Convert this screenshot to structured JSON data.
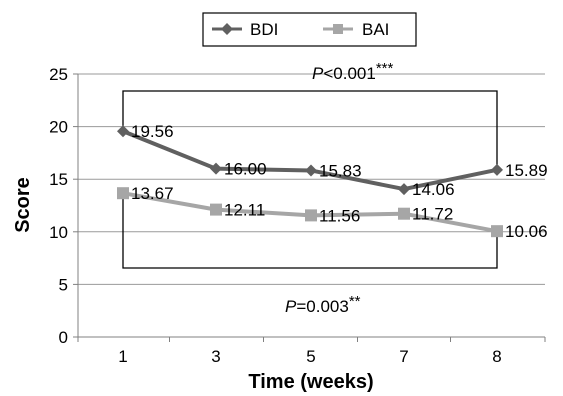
{
  "chart_data": {
    "type": "line",
    "categories": [
      "1",
      "3",
      "5",
      "7",
      "8"
    ],
    "series": [
      {
        "name": "BDI",
        "values": [
          19.56,
          16.0,
          15.83,
          14.06,
          15.89
        ],
        "labels": [
          "19.56",
          "16.00",
          "15.83",
          "14.06",
          "15.89"
        ],
        "color": "#606060",
        "marker": "diamond"
      },
      {
        "name": "BAI",
        "values": [
          13.67,
          12.11,
          11.56,
          11.72,
          10.06
        ],
        "labels": [
          "13.67",
          "12.11",
          "11.56",
          "11.72",
          "10.06"
        ],
        "color": "#a6a6a6",
        "marker": "square"
      }
    ],
    "xlabel": "Time (weeks)",
    "ylabel": "Score",
    "ylim": [
      0,
      25
    ],
    "yticks": [
      "0",
      "5",
      "10",
      "15",
      "20",
      "25"
    ],
    "grid": true,
    "legend": "top-center",
    "annotations": [
      {
        "italic": "P",
        "text": "<0.001",
        "stars": "***"
      },
      {
        "italic": "P",
        "text": "=0.003",
        "stars": "**"
      }
    ]
  }
}
